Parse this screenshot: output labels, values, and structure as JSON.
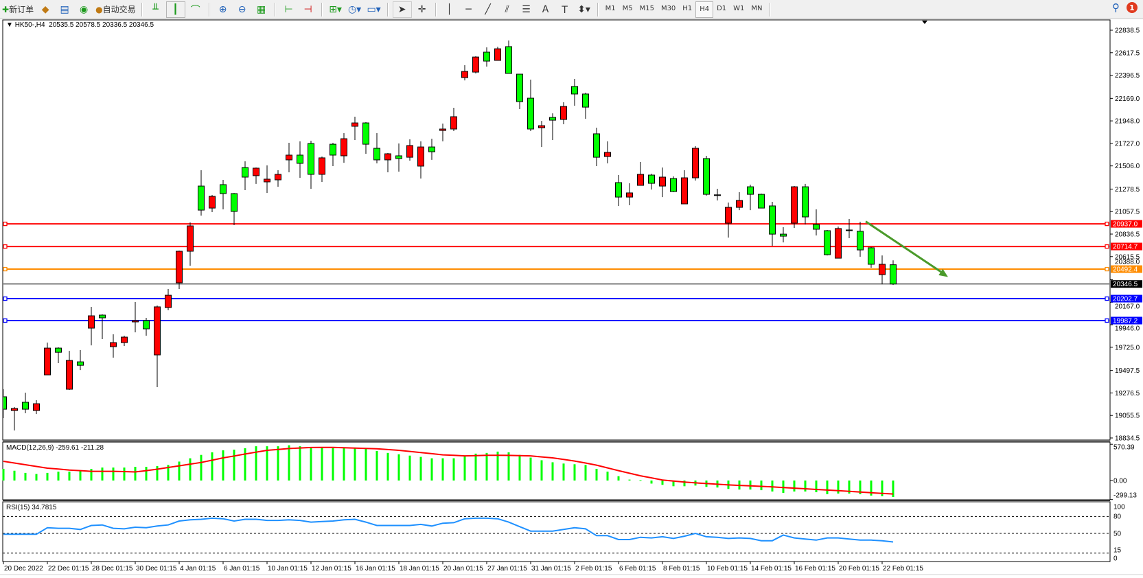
{
  "toolbar": {
    "new_order": "新订单",
    "auto_trading": "自动交易",
    "icons": [
      "new-order-icon",
      "market-watch-icon",
      "navigator-icon",
      "signals-icon",
      "auto-trading-icon",
      "bar-chart-icon",
      "candlestick-chart-icon",
      "line-chart-icon",
      "zoom-in-icon",
      "zoom-out-icon",
      "tile-windows-icon",
      "chart-shift-icon",
      "autoscroll-icon",
      "indicators-icon",
      "periods-clock-icon",
      "templates-icon",
      "cursor-icon",
      "crosshair-icon",
      "vertical-line-icon",
      "horizontal-line-icon",
      "trendline-icon",
      "equidistant-channel-icon",
      "fibonacci-icon",
      "text-icon",
      "text-label-icon",
      "arrows-icon"
    ],
    "timeframes": [
      "M1",
      "M5",
      "M15",
      "M30",
      "H1",
      "H4",
      "D1",
      "W1",
      "MN"
    ],
    "active_timeframe": "H4",
    "notification_count": "1"
  },
  "chart_data": {
    "type": "candlestick",
    "symbol_label": "HK50-,H4",
    "ohlc_label": "20535.5 20578.5 20336.5 20346.5",
    "up_color": "#ff0000",
    "down_color": "#00ff00",
    "ylim": [
      18834.5,
      22838.5
    ],
    "price_ticks": [
      "22838.5",
      "22617.5",
      "22396.5",
      "22169.0",
      "21948.0",
      "21727.0",
      "21506.0",
      "21278.5",
      "21057.5",
      "20836.5",
      "20615.5",
      "20388.0",
      "20167.0",
      "19946.0",
      "19725.0",
      "19497.5",
      "19276.5",
      "19055.5",
      "18834.5"
    ],
    "date_labels": [
      "20 Dec 2022",
      "22 Dec 01:15",
      "28 Dec 01:15",
      "30 Dec 01:15",
      "4 Jan 01:15",
      "6 Jan 01:15",
      "10 Jan 01:15",
      "12 Jan 01:15",
      "16 Jan 01:15",
      "18 Jan 01:15",
      "20 Jan 01:15",
      "27 Jan 01:15",
      "31 Jan 01:15",
      "2 Feb 01:15",
      "6 Feb 01:15",
      "8 Feb 01:15",
      "10 Feb 01:15",
      "14 Feb 01:15",
      "16 Feb 01:15",
      "20 Feb 01:15",
      "22 Feb 01:15"
    ],
    "candles_ohlc": [
      [
        19239,
        19313,
        19030,
        19117
      ],
      [
        19104,
        19138,
        18908,
        19124
      ],
      [
        19185,
        19279,
        19077,
        19117
      ],
      [
        19104,
        19205,
        19070,
        19171
      ],
      [
        19454,
        19771,
        19454,
        19717
      ],
      [
        19717,
        19724,
        19569,
        19676
      ],
      [
        19313,
        19690,
        19306,
        19596
      ],
      [
        19582,
        19697,
        19501,
        19548
      ],
      [
        19913,
        20122,
        19744,
        20034
      ],
      [
        20041,
        20048,
        19805,
        20014
      ],
      [
        19731,
        19852,
        19623,
        19771
      ],
      [
        19771,
        19839,
        19738,
        19825
      ],
      [
        19974,
        20169,
        19872,
        19987
      ],
      [
        19987,
        20014,
        19839,
        19906
      ],
      [
        19650,
        20135,
        19333,
        20122
      ],
      [
        20115,
        20297,
        20088,
        20236
      ],
      [
        20358,
        20675,
        20297,
        20668
      ],
      [
        20668,
        20951,
        20526,
        20917
      ],
      [
        21308,
        21463,
        21018,
        21072
      ],
      [
        21092,
        21221,
        21052,
        21207
      ],
      [
        21322,
        21369,
        21079,
        21234
      ],
      [
        21234,
        21240,
        20924,
        21059
      ],
      [
        21490,
        21551,
        21268,
        21396
      ],
      [
        21410,
        21490,
        21329,
        21484
      ],
      [
        21349,
        21511,
        21241,
        21376
      ],
      [
        21369,
        21463,
        21302,
        21423
      ],
      [
        21565,
        21733,
        21443,
        21612
      ],
      [
        21612,
        21747,
        21389,
        21531
      ],
      [
        21726,
        21753,
        21281,
        21423
      ],
      [
        21423,
        21598,
        21349,
        21585
      ],
      [
        21719,
        21733,
        21504,
        21612
      ],
      [
        21605,
        21827,
        21537,
        21773
      ],
      [
        21895,
        21989,
        21760,
        21928
      ],
      [
        21928,
        21935,
        21625,
        21719
      ],
      [
        21679,
        21827,
        21531,
        21565
      ],
      [
        21565,
        21632,
        21443,
        21625
      ],
      [
        21605,
        21726,
        21450,
        21578
      ],
      [
        21591,
        21767,
        21558,
        21706
      ],
      [
        21504,
        21747,
        21382,
        21692
      ],
      [
        21692,
        21773,
        21565,
        21645
      ],
      [
        21854,
        21922,
        21747,
        21868
      ],
      [
        21868,
        22077,
        21848,
        21989
      ],
      [
        22373,
        22495,
        22346,
        22434
      ],
      [
        22427,
        22582,
        22414,
        22575
      ],
      [
        22623,
        22670,
        22481,
        22535
      ],
      [
        22542,
        22677,
        22542,
        22656
      ],
      [
        22677,
        22737,
        22414,
        22414
      ],
      [
        22407,
        22407,
        22063,
        22137
      ],
      [
        22171,
        22353,
        21848,
        21868
      ],
      [
        21881,
        21948,
        21692,
        21901
      ],
      [
        21982,
        22022,
        21760,
        21955
      ],
      [
        21962,
        22131,
        21915,
        22090
      ],
      [
        22286,
        22360,
        22097,
        22212
      ],
      [
        22212,
        22225,
        21969,
        22083
      ],
      [
        21821,
        21881,
        21504,
        21591
      ],
      [
        21598,
        21747,
        21531,
        21639
      ],
      [
        21342,
        21416,
        21113,
        21200
      ],
      [
        21200,
        21335,
        21120,
        21241
      ],
      [
        21315,
        21544,
        21315,
        21423
      ],
      [
        21416,
        21430,
        21274,
        21335
      ],
      [
        21308,
        21490,
        21200,
        21396
      ],
      [
        21382,
        21403,
        21248,
        21254
      ],
      [
        21133,
        21463,
        21133,
        21389
      ],
      [
        21389,
        21699,
        21362,
        21679
      ],
      [
        21578,
        21605,
        21214,
        21227
      ],
      [
        21220,
        21281,
        21167,
        21222
      ],
      [
        20944,
        21146,
        20802,
        21099
      ],
      [
        21099,
        21248,
        21072,
        21167
      ],
      [
        21301,
        21322,
        21072,
        21227
      ],
      [
        21227,
        21234,
        21092,
        21092
      ],
      [
        21113,
        21153,
        20722,
        20836
      ],
      [
        20836,
        20904,
        20755,
        20816
      ],
      [
        20944,
        21308,
        20897,
        21301
      ],
      [
        21301,
        21329,
        20931,
        21005
      ],
      [
        20931,
        21079,
        20823,
        20884
      ],
      [
        20870,
        20877,
        20627,
        20634
      ],
      [
        20600,
        20911,
        20600,
        20891
      ],
      [
        20877,
        20985,
        20796,
        20870
      ],
      [
        20864,
        20958,
        20614,
        20681
      ],
      [
        20702,
        20709,
        20506,
        20540
      ],
      [
        20438,
        20627,
        20344,
        20540
      ],
      [
        20535.5,
        20578.5,
        20336.5,
        20346.5
      ]
    ],
    "hlines": [
      {
        "price": "20937.0",
        "color": "#ff0000"
      },
      {
        "price": "20714.7",
        "color": "#ff0000"
      },
      {
        "price": "20492.4",
        "color": "#ff8c00"
      },
      {
        "price": "20202.7",
        "color": "#0000ff"
      },
      {
        "price": "19987.2",
        "color": "#0000ff"
      }
    ],
    "bid_line": {
      "price": "20346.5",
      "color": "#000000"
    },
    "trend_arrow": {
      "color": "#4a9a2a",
      "from": {
        "candle": 78.5,
        "price": 20960
      },
      "to": {
        "candle": 86,
        "price": 20415
      }
    },
    "macd": {
      "label": "MACD(12,26,9) -259.61 -211.28",
      "ticks": [
        "570.39",
        "0.00",
        "-299.13"
      ],
      "range": [
        -299.13,
        570.39
      ],
      "histogram_color": "#00ff00",
      "signal_color": "#ff0000",
      "histogram": [
        184,
        154,
        120,
        103,
        120,
        140,
        140,
        154,
        183,
        204,
        204,
        204,
        216,
        216,
        227,
        245,
        298,
        350,
        403,
        444,
        475,
        486,
        508,
        539,
        539,
        539,
        555,
        539,
        528,
        518,
        508,
        508,
        508,
        508,
        465,
        434,
        413,
        392,
        372,
        350,
        350,
        350,
        381,
        423,
        434,
        455,
        444,
        403,
        361,
        319,
        287,
        267,
        256,
        245,
        184,
        140,
        68,
        15,
        3,
        -48,
        -68,
        -90,
        -90,
        -79,
        -100,
        -110,
        -132,
        -142,
        -142,
        -152,
        -173,
        -194,
        -173,
        -173,
        -184,
        -216,
        -205,
        -205,
        -216,
        -237,
        -247,
        -259.61
      ],
      "signal": [
        302,
        275,
        248,
        221,
        194,
        180,
        165,
        155,
        145,
        145,
        145,
        140,
        135,
        155,
        178,
        205,
        231,
        258,
        284,
        320,
        356,
        386,
        417,
        446,
        475,
        489,
        503,
        512,
        520,
        521,
        521,
        515,
        510,
        505,
        499,
        487,
        475,
        458,
        440,
        422,
        404,
        396,
        388,
        392,
        397,
        397,
        395,
        392,
        388,
        372,
        356,
        332,
        307,
        275,
        242,
        199,
        156,
        115,
        75,
        42,
        9,
        -8,
        -25,
        -37,
        -48,
        -58,
        -69,
        -77,
        -84,
        -92,
        -100,
        -110,
        -120,
        -130,
        -140,
        -150,
        -160,
        -170,
        -180,
        -192,
        -203,
        -211.28
      ]
    },
    "rsi": {
      "label": "RSI(15) 34.7815",
      "ticks": [
        "100",
        "80",
        "50",
        "15",
        "0"
      ],
      "levels": [
        80,
        50,
        15
      ],
      "color": "#1e90ff",
      "values": [
        48.4,
        48.4,
        48.4,
        48.4,
        60,
        59,
        59,
        57,
        64,
        65,
        59,
        58,
        61,
        60,
        63,
        65,
        72,
        74,
        75,
        77,
        76,
        72,
        75,
        75,
        73,
        73,
        74,
        73,
        70,
        71,
        72,
        74,
        75,
        70,
        64,
        64,
        64,
        64,
        66,
        63,
        68,
        69,
        76,
        77,
        77,
        76,
        70,
        62,
        54,
        54,
        54,
        57,
        60,
        58,
        46,
        46,
        39,
        39,
        43,
        42,
        44,
        41,
        45,
        50,
        44,
        43,
        41,
        42,
        41,
        37,
        37,
        47,
        42,
        40,
        38,
        42,
        42,
        40,
        38,
        38,
        37,
        34.78
      ]
    }
  }
}
